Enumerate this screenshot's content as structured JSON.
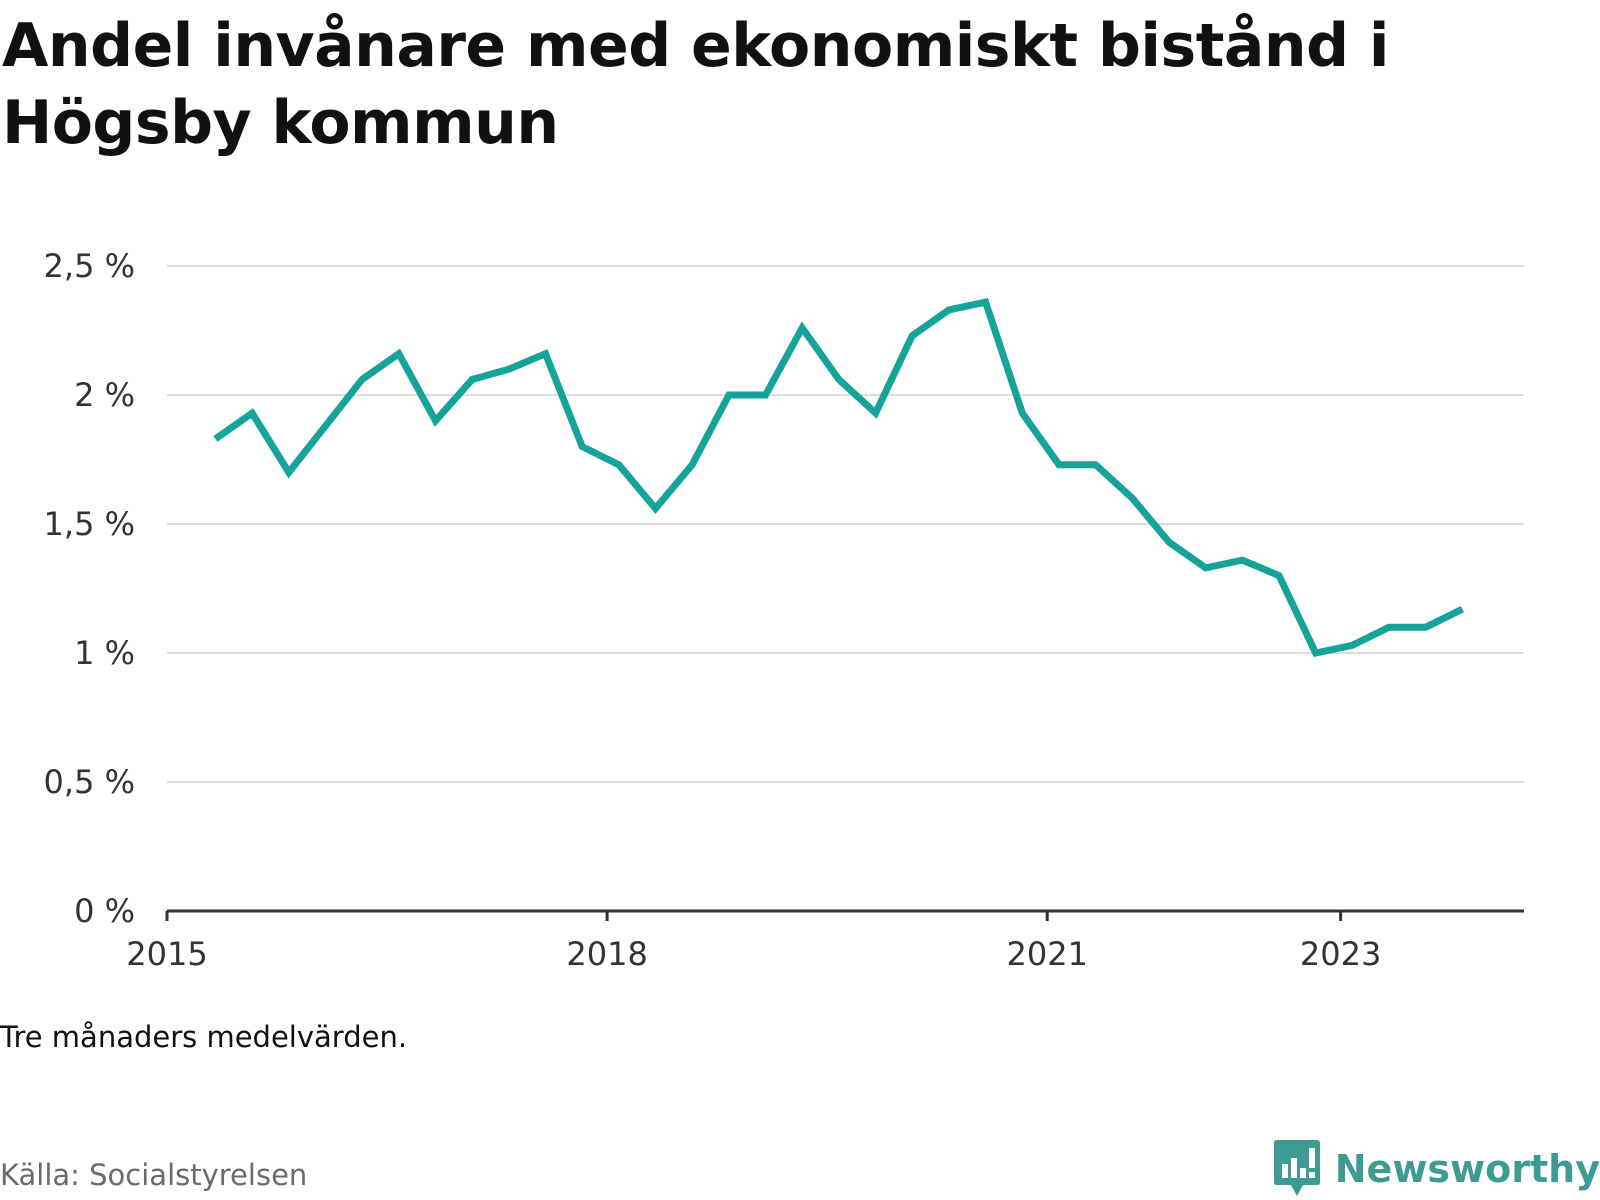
{
  "title": "Andel invånare med ekonomiskt bistånd i Högsby kommun",
  "note": "Tre månaders medelvärden.",
  "source": "Källa: Socialstyrelsen",
  "brand": {
    "name": "Newsworthy",
    "icon": "newsworthy-logo-icon",
    "color": "#3d9b94"
  },
  "colors": {
    "line": "#16a39a",
    "grid": "#dddddd",
    "axis": "#333333"
  },
  "chart_data": {
    "type": "line",
    "title": "Andel invånare med ekonomiskt bistånd i Högsby kommun",
    "xlabel": "",
    "ylabel": "",
    "grid": true,
    "ylim": [
      0,
      2.5
    ],
    "xlim": [
      2015.0,
      2024.25
    ],
    "yticks": [
      {
        "value": 0,
        "label": "0 %"
      },
      {
        "value": 0.5,
        "label": "0,5 %"
      },
      {
        "value": 1,
        "label": "1 %"
      },
      {
        "value": 1.5,
        "label": "1,5 %"
      },
      {
        "value": 2,
        "label": "2 %"
      },
      {
        "value": 2.5,
        "label": "2,5 %"
      }
    ],
    "xticks": [
      {
        "value": 2015,
        "label": "2015"
      },
      {
        "value": 2018,
        "label": "2018"
      },
      {
        "value": 2021,
        "label": "2021"
      },
      {
        "value": 2023,
        "label": "2023"
      }
    ],
    "series": [
      {
        "color": "#16a39a",
        "x": [
          2015.33,
          2015.58,
          2015.83,
          2016.08,
          2016.33,
          2016.58,
          2016.83,
          2017.08,
          2017.33,
          2017.58,
          2017.83,
          2018.08,
          2018.33,
          2018.58,
          2018.83,
          2019.08,
          2019.33,
          2019.58,
          2019.83,
          2020.08,
          2020.33,
          2020.58,
          2020.83,
          2021.08,
          2021.33,
          2021.58,
          2021.83,
          2022.08,
          2022.33,
          2022.58,
          2022.83,
          2023.08,
          2023.33,
          2023.58,
          2023.83
        ],
        "values": [
          1.83,
          1.93,
          1.7,
          1.88,
          2.06,
          2.16,
          1.9,
          2.06,
          2.1,
          2.16,
          1.8,
          1.73,
          1.56,
          1.73,
          2.0,
          2.0,
          2.26,
          2.06,
          1.93,
          2.23,
          2.33,
          2.36,
          1.93,
          1.73,
          1.73,
          1.6,
          1.43,
          1.33,
          1.36,
          1.3,
          1.0,
          1.03,
          1.1,
          1.1,
          1.17
        ]
      }
    ]
  }
}
